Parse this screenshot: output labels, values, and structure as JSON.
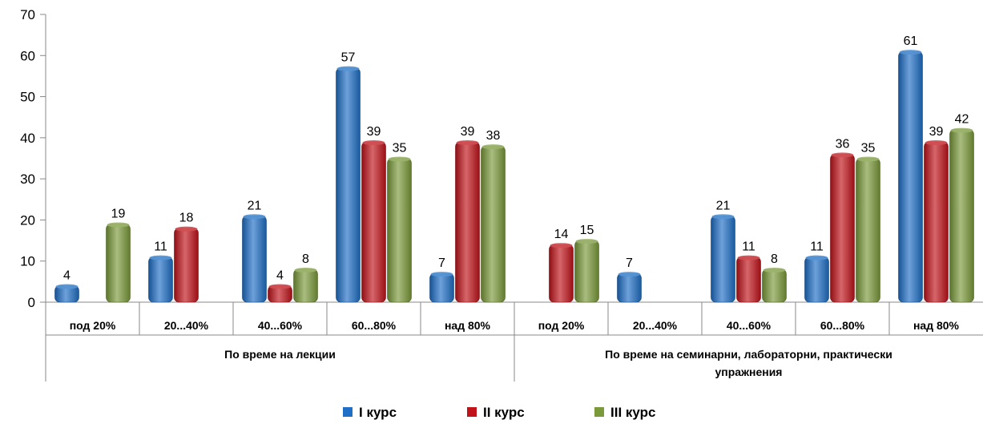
{
  "chart_data": {
    "type": "bar",
    "title": "",
    "xlabel": "",
    "ylabel": "",
    "ylim": [
      0,
      70
    ],
    "yticks": [
      0,
      10,
      20,
      30,
      40,
      50,
      60,
      70
    ],
    "grid": false,
    "legend_position": "bottom",
    "groups": [
      {
        "label": "По време на лекции",
        "categories": [
          "под 20%",
          "20...40%",
          "40...60%",
          "60...80%",
          "над 80%"
        ]
      },
      {
        "label_lines": [
          "По време на семинарни, лабораторни, практически",
          "упражнения"
        ],
        "categories": [
          "под 20%",
          "20...40%",
          "40...60%",
          "60...80%",
          "над 80%"
        ]
      }
    ],
    "series": [
      {
        "name": "I курс",
        "color": "#1f6fc6",
        "values": [
          4,
          11,
          21,
          57,
          7,
          null,
          7,
          21,
          11,
          61
        ]
      },
      {
        "name": "II курс",
        "color": "#c0141a",
        "values": [
          null,
          18,
          4,
          39,
          39,
          14,
          null,
          11,
          36,
          39
        ]
      },
      {
        "name": "III курс",
        "color": "#7a9a3a",
        "values": [
          19,
          null,
          8,
          35,
          38,
          15,
          null,
          8,
          35,
          42
        ]
      }
    ]
  }
}
